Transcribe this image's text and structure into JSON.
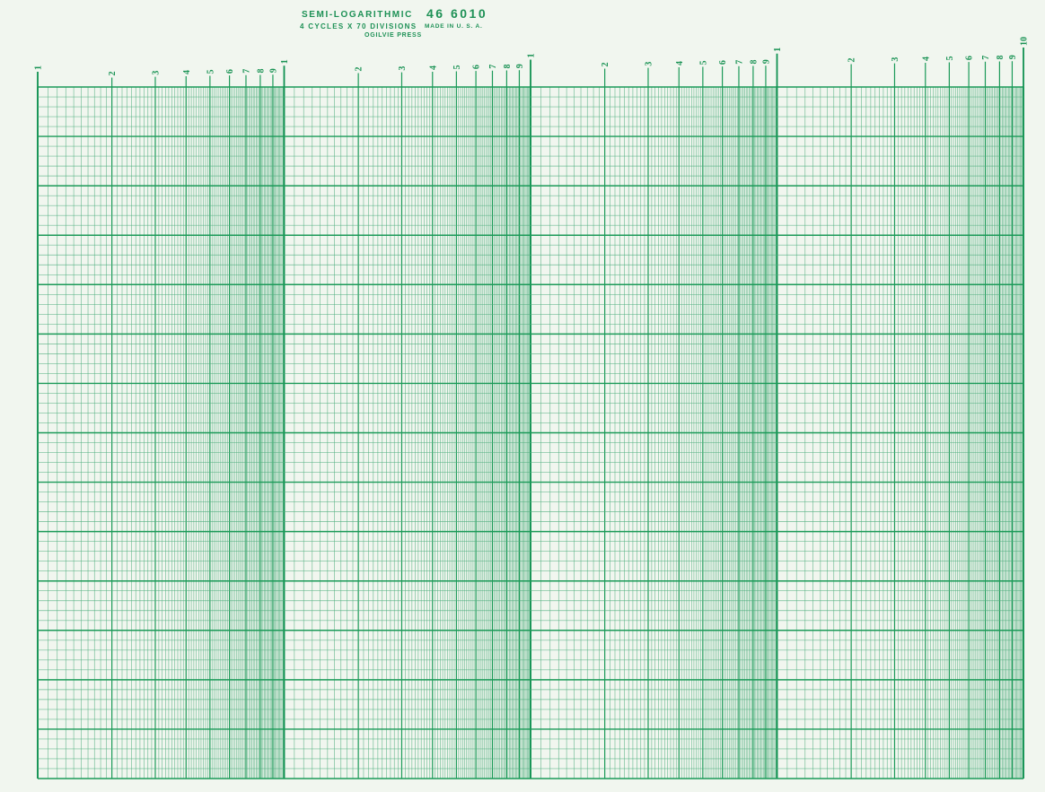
{
  "header": {
    "title": "SEMI-LOGARITHMIC",
    "catalog_number": "46 6010",
    "subtitle": "4 CYCLES X 70 DIVISIONS",
    "made_in": "MADE IN U. S. A.",
    "publisher": "OGILVIE PRESS"
  },
  "colors": {
    "paper": "#f1f6ef",
    "grid_boundary": "#0f9150",
    "grid_major": "#1b9a58",
    "grid_minor": "#4fae7d",
    "tick_label": "#1b9355",
    "header_text": "#1e9156"
  },
  "grid": {
    "cycles": 4,
    "divisions": 70,
    "major_every": 5,
    "cycle_labels": [
      "1",
      "2",
      "3",
      "4",
      "5",
      "6",
      "7",
      "8",
      "9"
    ],
    "axis_end_label": "10",
    "label_rotation_deg": -90
  },
  "chart_data": {
    "type": "line",
    "series": [],
    "title": "SEMI-LOGARITHMIC 46 6010 graph paper (blank, no plotted data)",
    "x_axis": {
      "scale": "log",
      "cycles": 4,
      "tick_labels_per_cycle": [
        "1",
        "2",
        "3",
        "4",
        "5",
        "6",
        "7",
        "8",
        "9"
      ],
      "final_label": "10",
      "minor_step_per_decade": 0.1
    },
    "y_axis": {
      "scale": "linear",
      "divisions": 70,
      "major_gridline_every": 5,
      "tick_labels": []
    },
    "grid": "on",
    "legend": "none"
  }
}
